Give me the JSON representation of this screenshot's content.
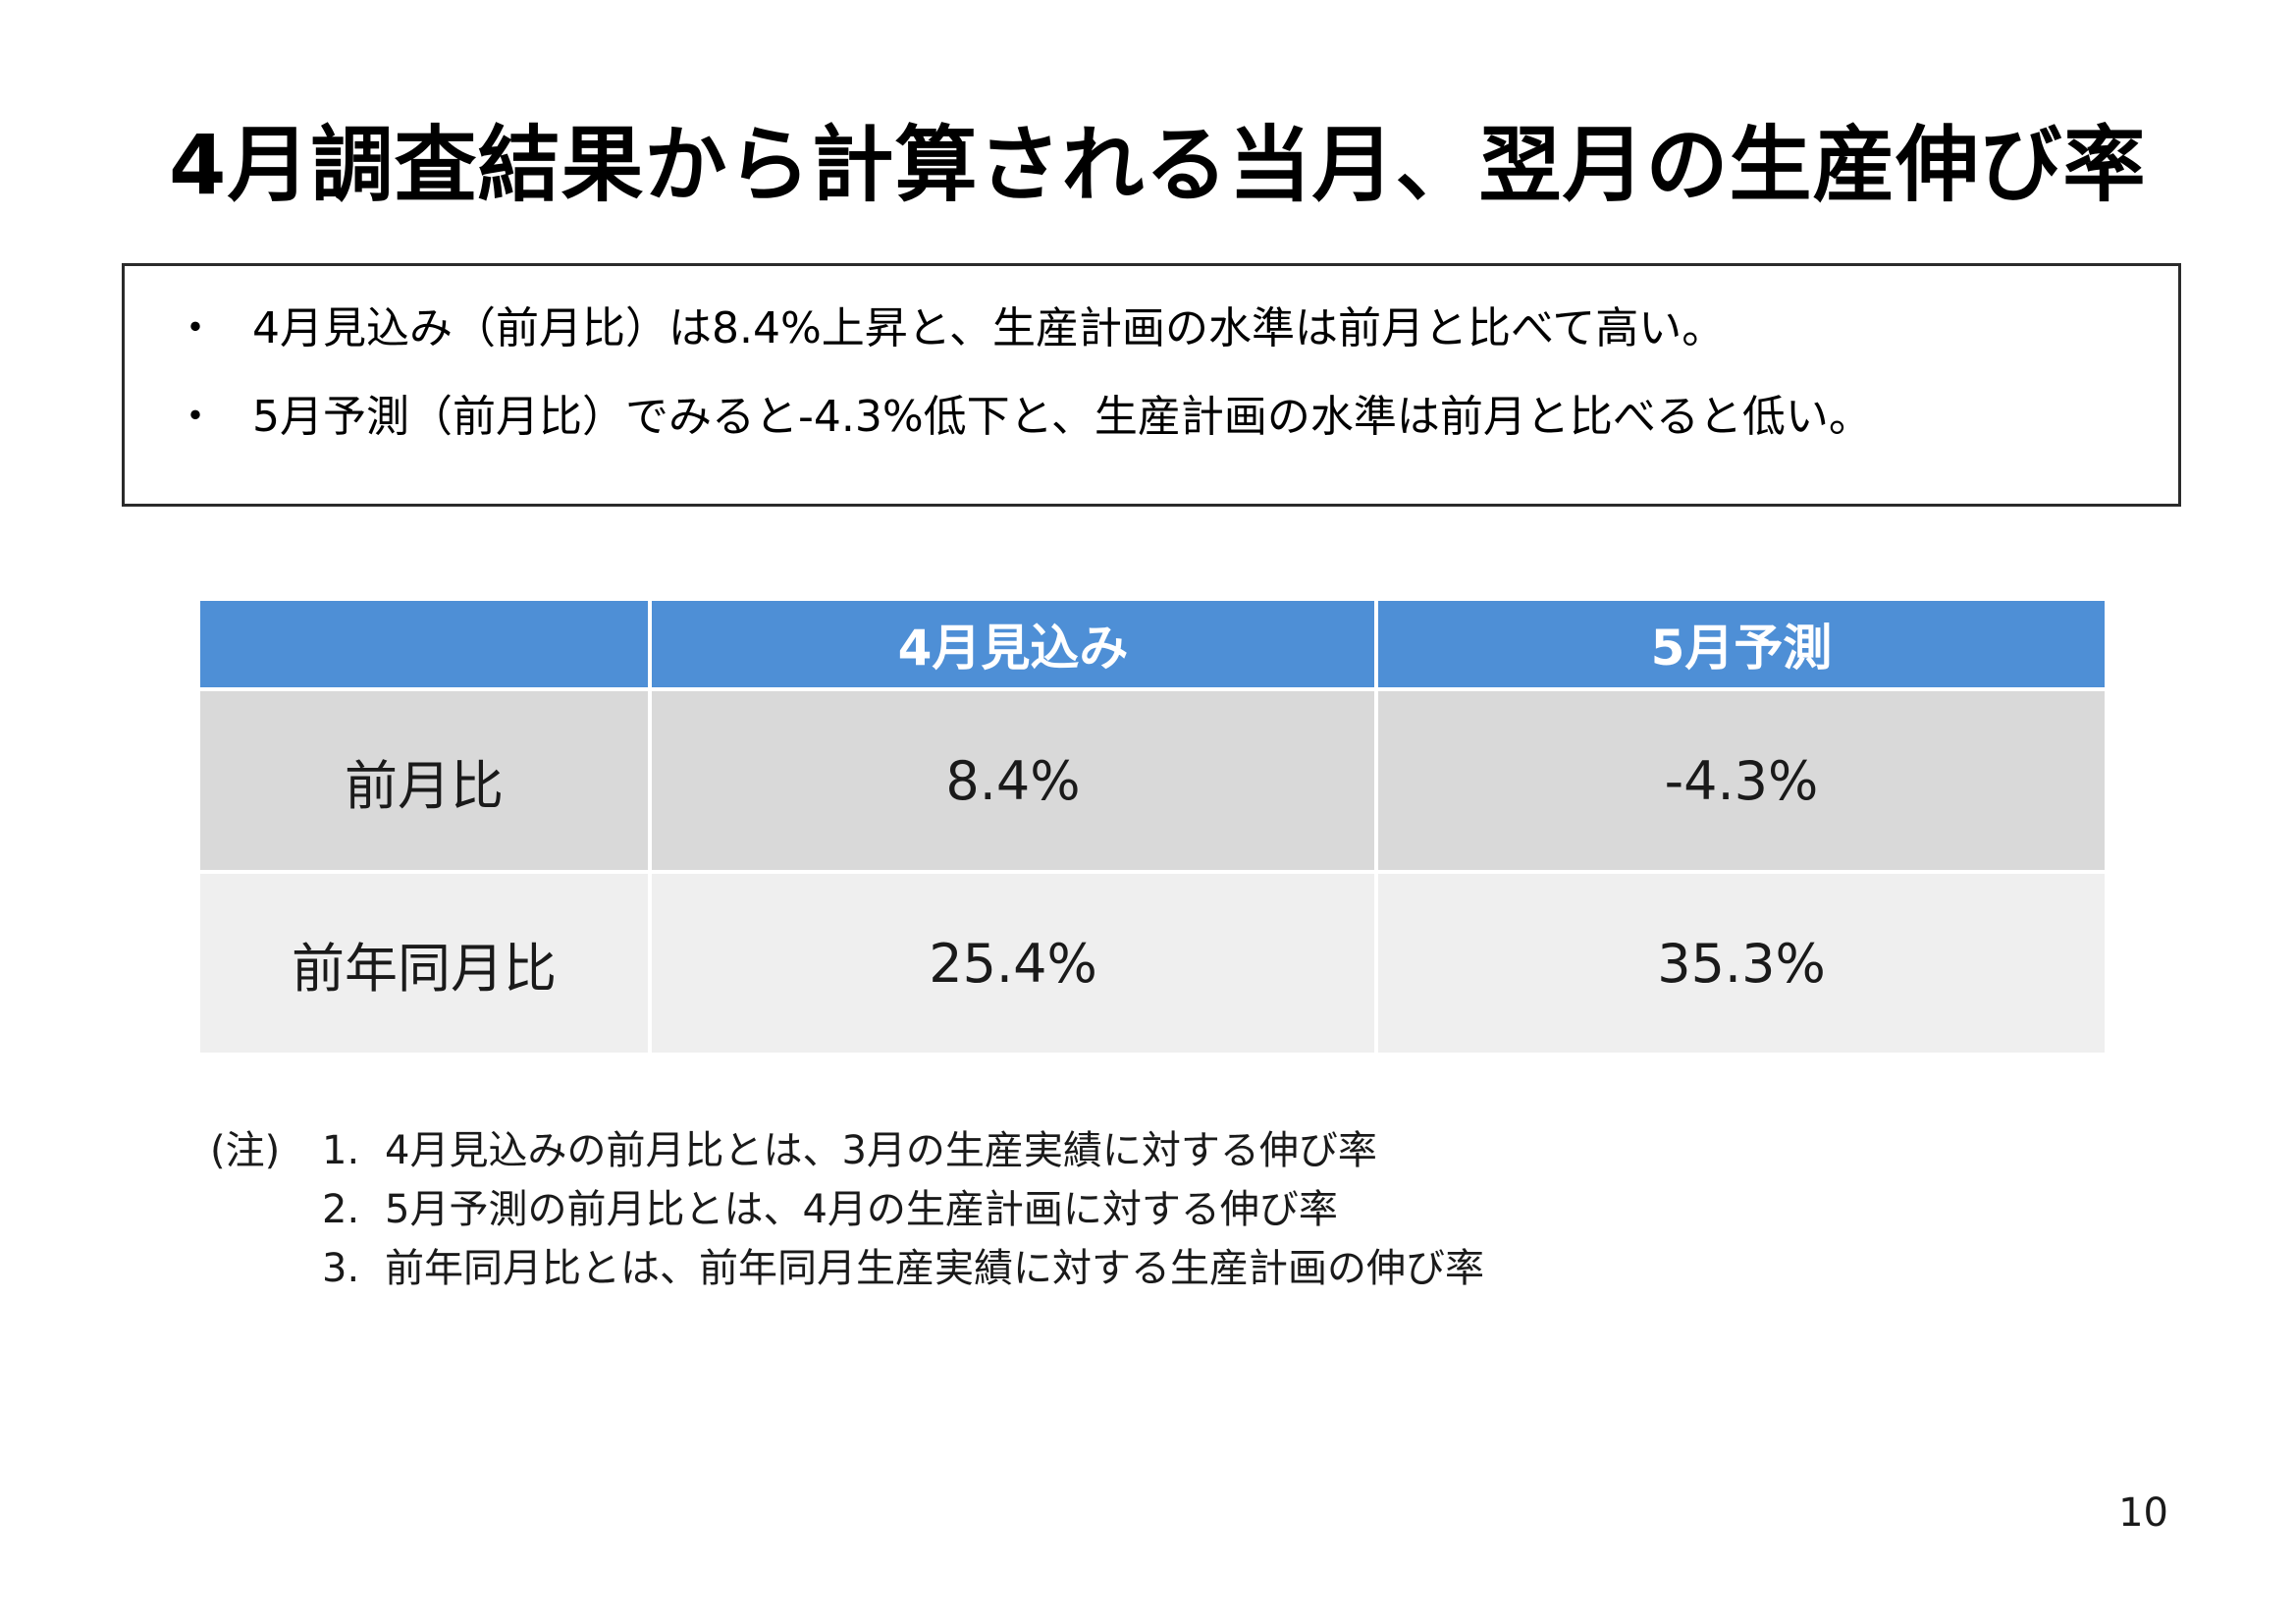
{
  "title": "4月調査結果から計算される当月、翌月の生産伸び率",
  "summary": {
    "bullets": [
      {
        "marker": "・",
        "text": "4月見込み（前月比）は8.4%上昇と、生産計画の水準は前月と比べて高い。"
      },
      {
        "marker": "・",
        "text": "5月予測（前月比）でみると-4.3%低下と、生産計画の水準は前月と比べると低い。"
      }
    ]
  },
  "table": {
    "headers": [
      "",
      "4月見込み",
      "5月予測"
    ],
    "rows": [
      {
        "label": "前月比",
        "values": [
          "8.4%",
          "-4.3%"
        ]
      },
      {
        "label": "前年同月比",
        "values": [
          "25.4%",
          "35.3%"
        ]
      }
    ],
    "colors": {
      "header": "#4e8fd6",
      "row_odd": "#d9d9d9",
      "row_even": "#efefef"
    }
  },
  "notes": {
    "prefix": "(注)",
    "items": [
      {
        "num": "1.",
        "text": "4月見込みの前月比とは、3月の生産実績に対する伸び率"
      },
      {
        "num": "2.",
        "text": "5月予測の前月比とは、4月の生産計画に対する伸び率"
      },
      {
        "num": "3.",
        "text": "前年同月比とは、前年同月生産実績に対する生産計画の伸び率"
      }
    ]
  },
  "page_number": "10"
}
